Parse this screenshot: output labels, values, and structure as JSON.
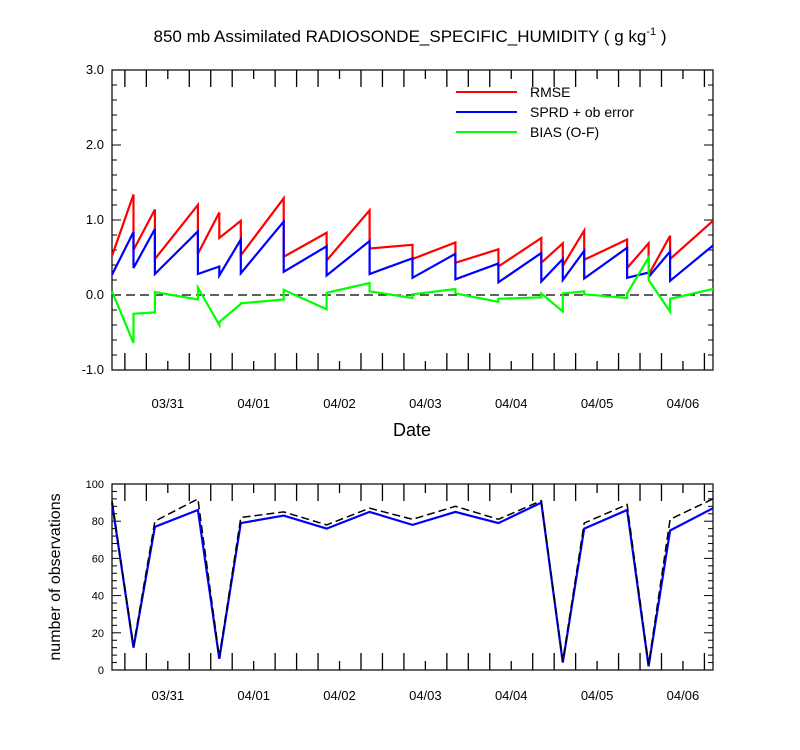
{
  "chart_data": [
    {
      "type": "line",
      "title_main": "850 mb Assimilated RADIOSONDE_SPECIFIC_HUMIDITY ( g kg",
      "title_sup": "-1",
      "title_end": " )",
      "xlabel": "Date",
      "ylabel": "",
      "ylim": [
        -1.0,
        3.0
      ],
      "xlim": [
        0.35,
        7.35
      ],
      "yticks": [
        -1.0,
        0.0,
        1.0,
        2.0,
        3.0
      ],
      "ytick_labels": [
        "-1.0",
        "0.0",
        "1.0",
        "2.0",
        "3.0"
      ],
      "xticks": [
        1,
        2,
        3,
        4,
        5,
        6,
        7
      ],
      "xtick_labels": [
        "03/31",
        "04/01",
        "04/02",
        "04/03",
        "04/04",
        "04/05",
        "04/06"
      ],
      "zero_line": true,
      "grid": false,
      "legend_position": "top-right",
      "x": [
        0.35,
        0.6,
        0.6,
        0.85,
        0.85,
        1.35,
        1.35,
        1.6,
        1.6,
        1.85,
        1.85,
        2.35,
        2.35,
        2.85,
        2.85,
        3.35,
        3.35,
        3.85,
        3.85,
        4.35,
        4.35,
        4.85,
        4.85,
        5.35,
        5.35,
        5.6,
        5.6,
        5.85,
        5.85,
        6.35,
        6.35,
        6.6,
        6.6,
        6.85,
        6.85,
        7.35
      ],
      "series": [
        {
          "name": "RMSE",
          "color": "#ff0000",
          "values": [
            0.52,
            1.34,
            0.6,
            1.14,
            0.48,
            1.2,
            0.55,
            1.1,
            0.76,
            0.99,
            0.53,
            1.29,
            0.51,
            0.83,
            0.46,
            1.13,
            0.62,
            0.67,
            0.48,
            0.7,
            0.43,
            0.61,
            0.38,
            0.76,
            0.43,
            0.69,
            0.39,
            0.86,
            0.47,
            0.74,
            0.36,
            0.69,
            0.27,
            0.79,
            0.48,
            0.99
          ]
        },
        {
          "name": "SPRD + ob error",
          "color": "#0000ff",
          "values": [
            0.27,
            0.84,
            0.36,
            0.88,
            0.28,
            0.85,
            0.28,
            0.38,
            0.26,
            0.74,
            0.29,
            0.98,
            0.31,
            0.65,
            0.26,
            0.72,
            0.28,
            0.49,
            0.23,
            0.55,
            0.21,
            0.42,
            0.17,
            0.56,
            0.18,
            0.48,
            0.2,
            0.59,
            0.22,
            0.63,
            0.23,
            0.3,
            0.24,
            0.58,
            0.19,
            0.66
          ]
        },
        {
          "name": "BIAS (O-F)",
          "color": "#00ff00",
          "values": [
            0.05,
            -0.64,
            -0.25,
            -0.23,
            0.04,
            -0.06,
            0.1,
            -0.4,
            -0.36,
            -0.12,
            -0.11,
            -0.06,
            0.07,
            -0.19,
            0.03,
            0.16,
            0.05,
            -0.04,
            0.01,
            0.08,
            0.02,
            -0.09,
            -0.05,
            -0.03,
            0.02,
            -0.22,
            0.02,
            0.05,
            0.01,
            -0.04,
            0.02,
            0.5,
            0.2,
            -0.22,
            -0.05,
            0.08
          ]
        }
      ]
    },
    {
      "type": "line",
      "title": "",
      "xlabel": "",
      "ylabel": "number of observations",
      "ylim": [
        0,
        100
      ],
      "xlim": [
        0.35,
        7.35
      ],
      "yticks": [
        0,
        20,
        40,
        60,
        80,
        100
      ],
      "ytick_labels": [
        "0",
        "20",
        "40",
        "60",
        "80",
        "100"
      ],
      "xticks": [
        1,
        2,
        3,
        4,
        5,
        6,
        7
      ],
      "xtick_labels": [
        "03/31",
        "04/01",
        "04/02",
        "04/03",
        "04/04",
        "04/05",
        "04/06"
      ],
      "grid": false,
      "x": [
        0.35,
        0.6,
        0.85,
        1.35,
        1.6,
        1.85,
        2.35,
        2.85,
        3.35,
        3.85,
        4.35,
        4.85,
        5.35,
        5.6,
        5.85,
        6.35,
        6.6,
        6.85,
        7.35
      ],
      "series": [
        {
          "style": "solid",
          "color": "#0000ff",
          "values": [
            90,
            12,
            77,
            86,
            6,
            79,
            83,
            76,
            85,
            78,
            85,
            79,
            90,
            4,
            76,
            86,
            2,
            75,
            87
          ]
        },
        {
          "style": "dashed",
          "color": "#000000",
          "values": [
            91,
            13,
            80,
            92,
            7,
            82,
            85,
            78,
            87,
            81,
            88,
            81,
            91,
            5,
            79,
            89,
            3,
            81,
            92
          ]
        }
      ]
    }
  ]
}
